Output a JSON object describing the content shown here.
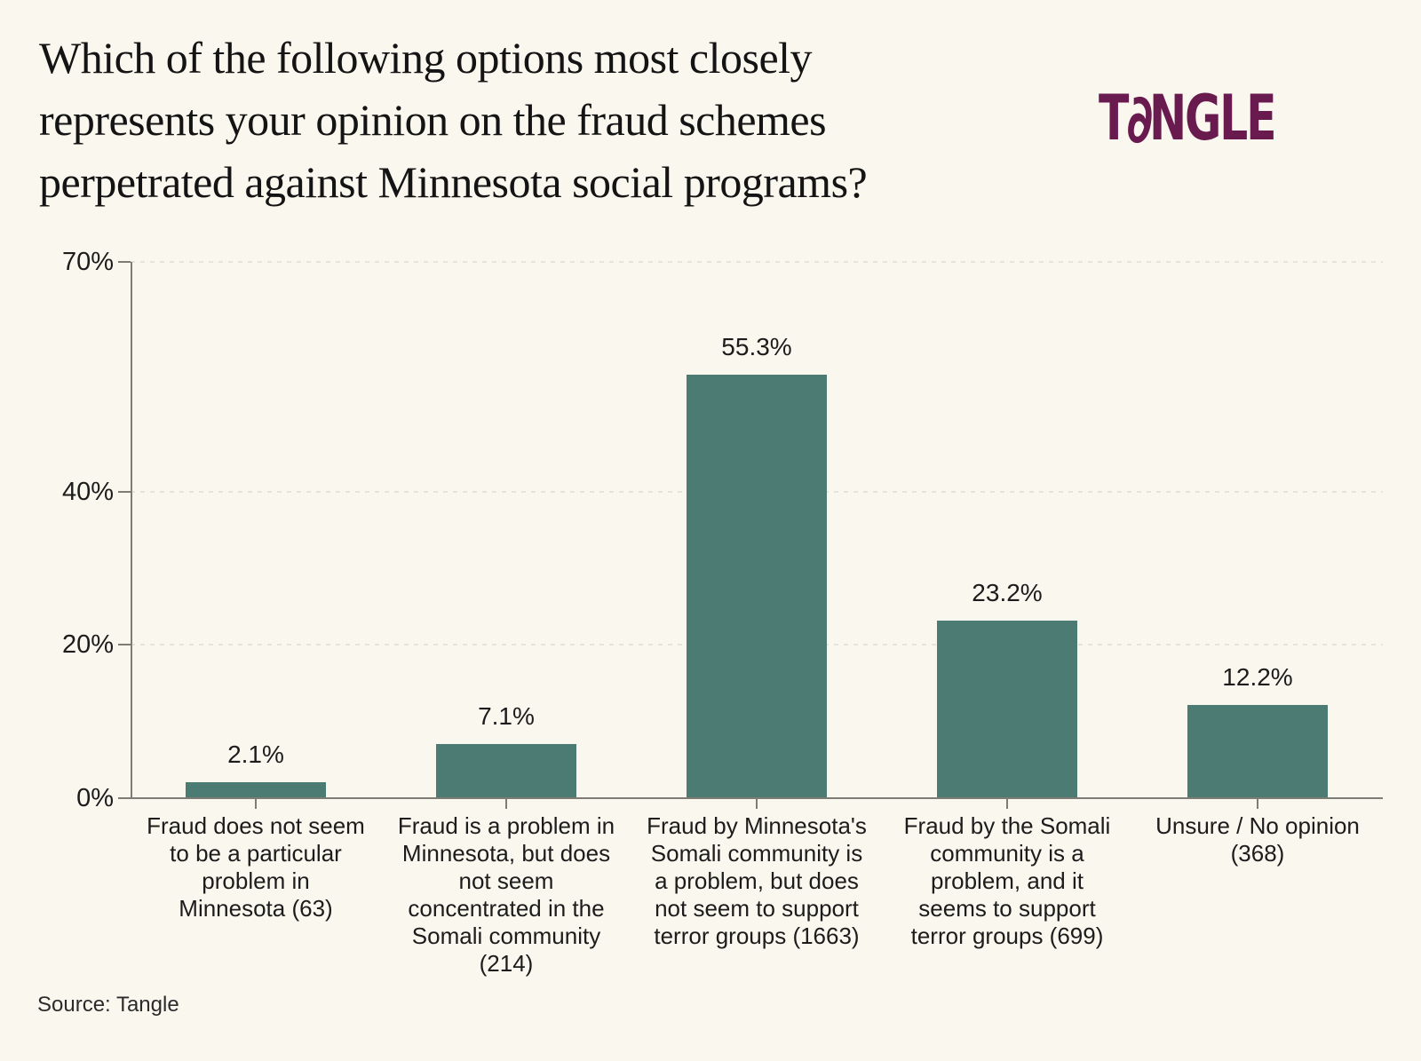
{
  "title": {
    "text": "Which of the following options most closely represents your opinion on the fraud schemes perpetrated against Minnesota social programs?",
    "lines": [
      "Which of the following options most closely",
      "represents your opinion on the fraud schemes",
      "perpetrated against Minnesota social programs?"
    ]
  },
  "logo": {
    "text": "TANGLE",
    "display": {
      "t": "T",
      "a": "∂",
      "ngle": "NGLE"
    },
    "color": "#691A4E"
  },
  "source": "Source: Tangle",
  "chart_data": {
    "type": "bar",
    "title": "Which of the following options most closely represents your opinion on the fraud schemes perpetrated against Minnesota social programs?",
    "categories": [
      "Fraud does not seem to be a particular problem in Minnesota (63)",
      "Fraud is a problem in Minnesota, but does not seem concentrated in the Somali community (214)",
      "Fraud by Minnesota's Somali community is a problem, but does not seem to support terror groups (1663)",
      "Fraud by the Somali community is a problem, and it seems to support terror groups (699)",
      "Unsure / No opinion (368)"
    ],
    "category_lines": [
      [
        "Fraud does not seem",
        "to be a particular",
        "problem in",
        "Minnesota (63)"
      ],
      [
        "Fraud is a problem in",
        "Minnesota, but does",
        "not seem",
        "concentrated in the",
        "Somali community",
        "(214)"
      ],
      [
        "Fraud by Minnesota's",
        "Somali community is",
        "a problem, but does",
        "not seem to support",
        "terror groups (1663)"
      ],
      [
        "Fraud by the Somali",
        "community is a",
        "problem, and it",
        "seems to support",
        "terror groups (699)"
      ],
      [
        "Unsure / No opinion",
        "(368)"
      ]
    ],
    "values": [
      2.1,
      7.1,
      55.3,
      23.2,
      12.2
    ],
    "value_labels": [
      "2.1%",
      "7.1%",
      "55.3%",
      "23.2%",
      "12.2%"
    ],
    "response_counts": [
      63,
      214,
      1663,
      699,
      368
    ],
    "xlabel": "",
    "ylabel": "",
    "ylim": [
      0,
      70
    ],
    "yticks": [
      {
        "value": 0,
        "label": "0%"
      },
      {
        "value": 20,
        "label": "20%"
      },
      {
        "value": 40,
        "label": "40%"
      },
      {
        "value": 70,
        "label": "70%"
      }
    ],
    "bar_color": "#4B7B72",
    "axis_color": "#7D7D76",
    "gridline_color": "#E7E3D6",
    "grid": "horizontal-dashed",
    "legend": "none",
    "background": "#FAF7EE"
  }
}
